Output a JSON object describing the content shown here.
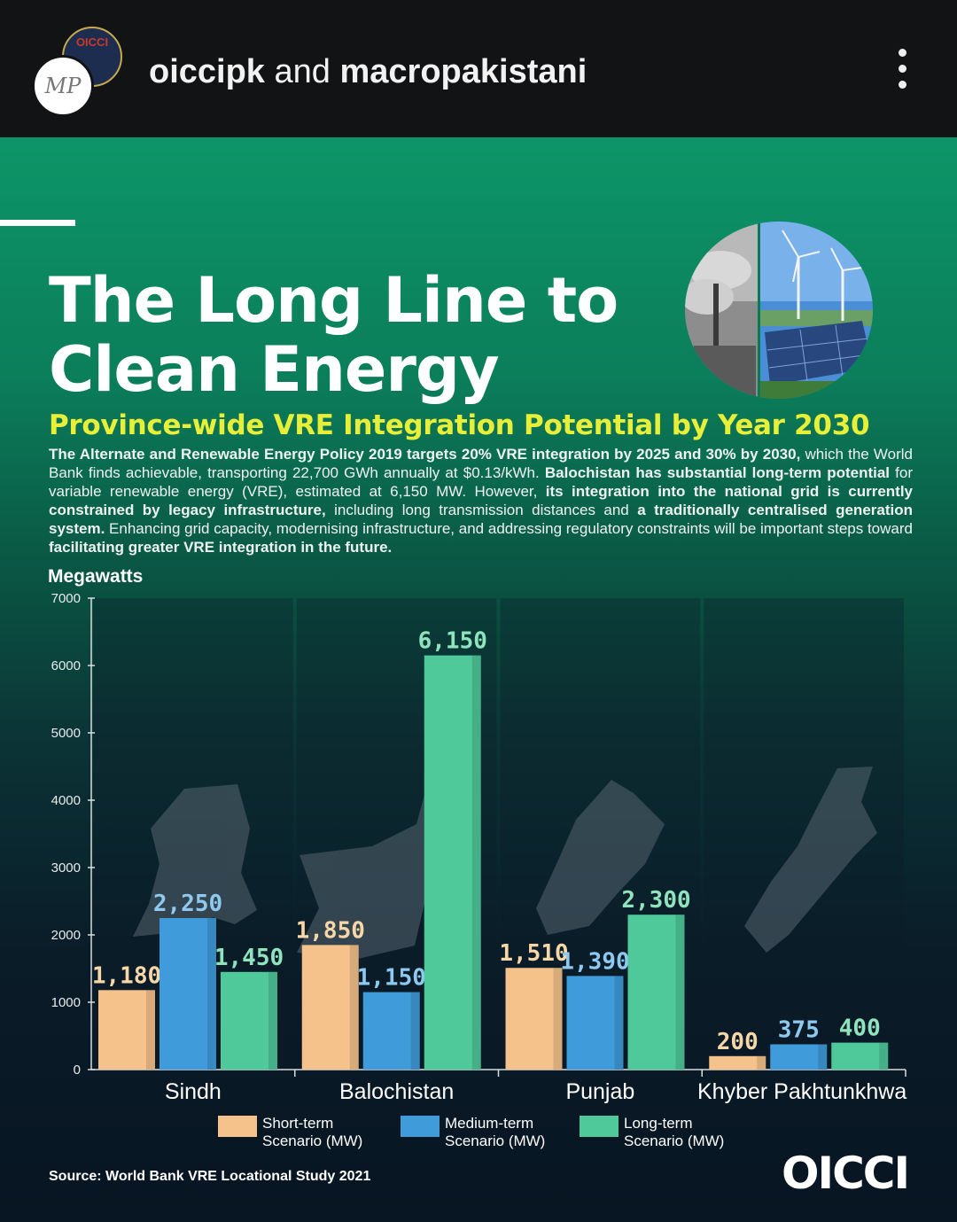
{
  "post_header": {
    "account_1": "oiccipk",
    "joiner": "and",
    "account_2": "macropakistani",
    "avatar_back_text": "OICCI",
    "avatar_front_text": "MP",
    "menu_icon": "more-vertical-icon"
  },
  "infographic": {
    "title": "The Long Line to Clean Energy",
    "subtitle": "Province-wide VRE Integration Potential by Year 2030",
    "body_parts": [
      {
        "t": "The Alternate and Renewable Energy Policy 2019 targets 20% VRE integration by 2025 and 30% by 2030,",
        "b": true
      },
      {
        "t": " which the World Bank finds achievable, transporting 22,700 GWh annually at $0.13/kWh. ",
        "b": false
      },
      {
        "t": "Balochistan has substantial long-term potential",
        "b": true
      },
      {
        "t": " for variable renewable energy (VRE), estimated at 6,150 MW. However, ",
        "b": false
      },
      {
        "t": "its integration into the national grid is currently constrained by legacy infrastructure,",
        "b": true
      },
      {
        "t": " including long transmission distances and ",
        "b": false
      },
      {
        "t": "a traditionally centralised generation system.",
        "b": true
      },
      {
        "t": " Enhancing grid capacity, modernising infrastructure, and addressing regulatory constraints will be important steps toward ",
        "b": false
      },
      {
        "t": "facilitating greater VRE integration in the future.",
        "b": true
      }
    ],
    "source": "Source: World Bank VRE Locational Study 2021",
    "logo_text": "OICCI"
  },
  "chart_data": {
    "type": "bar",
    "ylabel": "Megawatts",
    "ylim": [
      0,
      7000
    ],
    "yticks": [
      0,
      1000,
      2000,
      3000,
      4000,
      5000,
      6000,
      7000
    ],
    "categories": [
      "Sindh",
      "Balochistan",
      "Punjab",
      "Khyber Pakhtunkhwa"
    ],
    "series": [
      {
        "name": "Short-term Scenario (MW)",
        "color": "#f4c28a",
        "values": [
          1180,
          1850,
          1510,
          200
        ],
        "labels": [
          "1,180",
          "1,850",
          "1,510",
          "200"
        ]
      },
      {
        "name": "Medium-term Scenario (MW)",
        "color": "#3f9bd9",
        "values": [
          2250,
          1150,
          1390,
          375
        ],
        "labels": [
          "2,250",
          "1,150",
          "1,390",
          "375"
        ]
      },
      {
        "name": "Long-term Scenario (MW)",
        "color": "#4fc99a",
        "values": [
          1450,
          6150,
          2300,
          400
        ],
        "labels": [
          "1,450",
          "6,150",
          "2,300",
          "400"
        ]
      }
    ],
    "legend": [
      {
        "line1": "Short-term",
        "line2": "Scenario (MW)"
      },
      {
        "line1": "Medium-term",
        "line2": "Scenario (MW)"
      },
      {
        "line1": "Long-term",
        "line2": "Scenario (MW)"
      }
    ],
    "label_colors": [
      "#f7d6a8",
      "#8ec9f0",
      "#8fe3bd"
    ],
    "grid": false,
    "legend_placement": "bottom"
  }
}
